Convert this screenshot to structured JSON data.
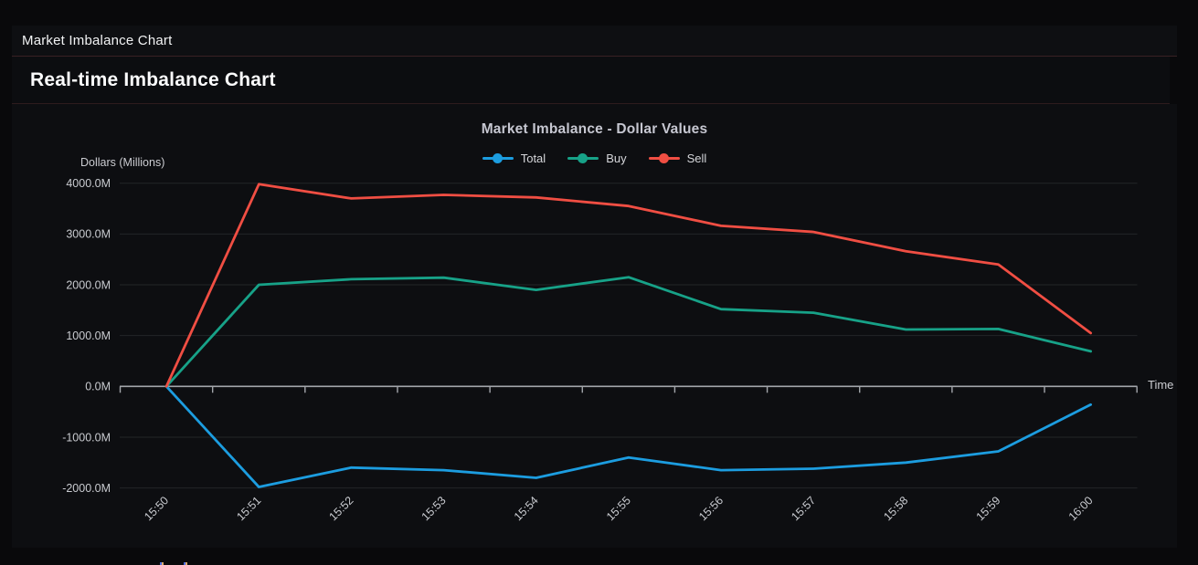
{
  "app": {
    "header_title": "Market Imbalance Chart",
    "section_title": "Real-time Imbalance Chart"
  },
  "chart_data": {
    "type": "line",
    "title": "Market Imbalance - Dollar Values",
    "ylabel": "Dollars (Millions)",
    "xlabel": "Time",
    "grid": true,
    "legend_position": "top-center",
    "categories": [
      "15:50",
      "15:51",
      "15:52",
      "15:53",
      "15:54",
      "15:55",
      "15:56",
      "15:57",
      "15:58",
      "15:59",
      "16:00"
    ],
    "series": [
      {
        "name": "Total",
        "color": "#1c9de0",
        "values": [
          0,
          -1980,
          -1600,
          -1650,
          -1800,
          -1400,
          -1650,
          -1620,
          -1500,
          -1280,
          -360
        ]
      },
      {
        "name": "Buy",
        "color": "#17a288",
        "values": [
          0,
          2000,
          2110,
          2140,
          1900,
          2150,
          1520,
          1450,
          1120,
          1130,
          690
        ]
      },
      {
        "name": "Sell",
        "color": "#f04e43",
        "values": [
          0,
          3980,
          3700,
          3770,
          3720,
          3550,
          3160,
          3040,
          2660,
          2400,
          1050
        ]
      }
    ],
    "ylim": [
      -2000,
      4000
    ],
    "ytick_labels": [
      "4000.0M",
      "3000.0M",
      "2000.0M",
      "1000.0M",
      "0.0M",
      "-1000.0M",
      "-2000.0M"
    ],
    "colors": {
      "background": "#0d0e11",
      "grid": "#232528",
      "axis": "#a3a6ab",
      "tick_text": "#c9cbd0",
      "title_text": "#c6c7d1"
    }
  }
}
